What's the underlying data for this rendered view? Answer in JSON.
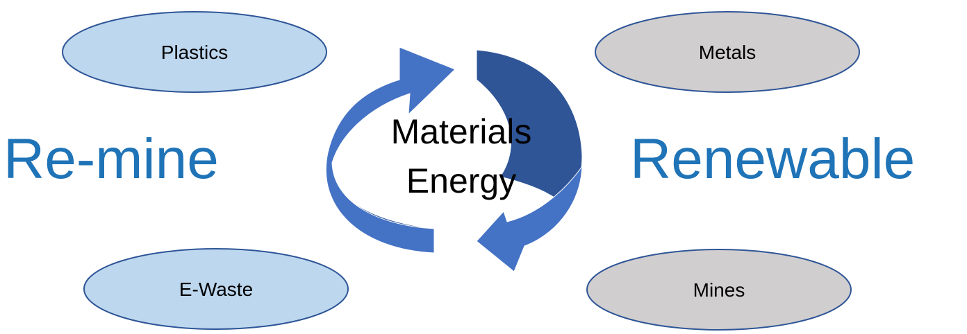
{
  "left_heading": "Re-mine",
  "right_heading": "Renewable",
  "center": {
    "line1": "Materials",
    "line2": "Energy"
  },
  "nodes": {
    "plastics": "Plastics",
    "ewaste": "E-Waste",
    "metals": "Metals",
    "mines": "Mines"
  },
  "colors": {
    "heading": "#1f73b7",
    "left_fill": "#bdd7ee",
    "right_fill": "#d0cece",
    "ellipse_stroke": "#2e5597",
    "arrow_light": "#4472c4",
    "arrow_dark": "#2f5597"
  }
}
